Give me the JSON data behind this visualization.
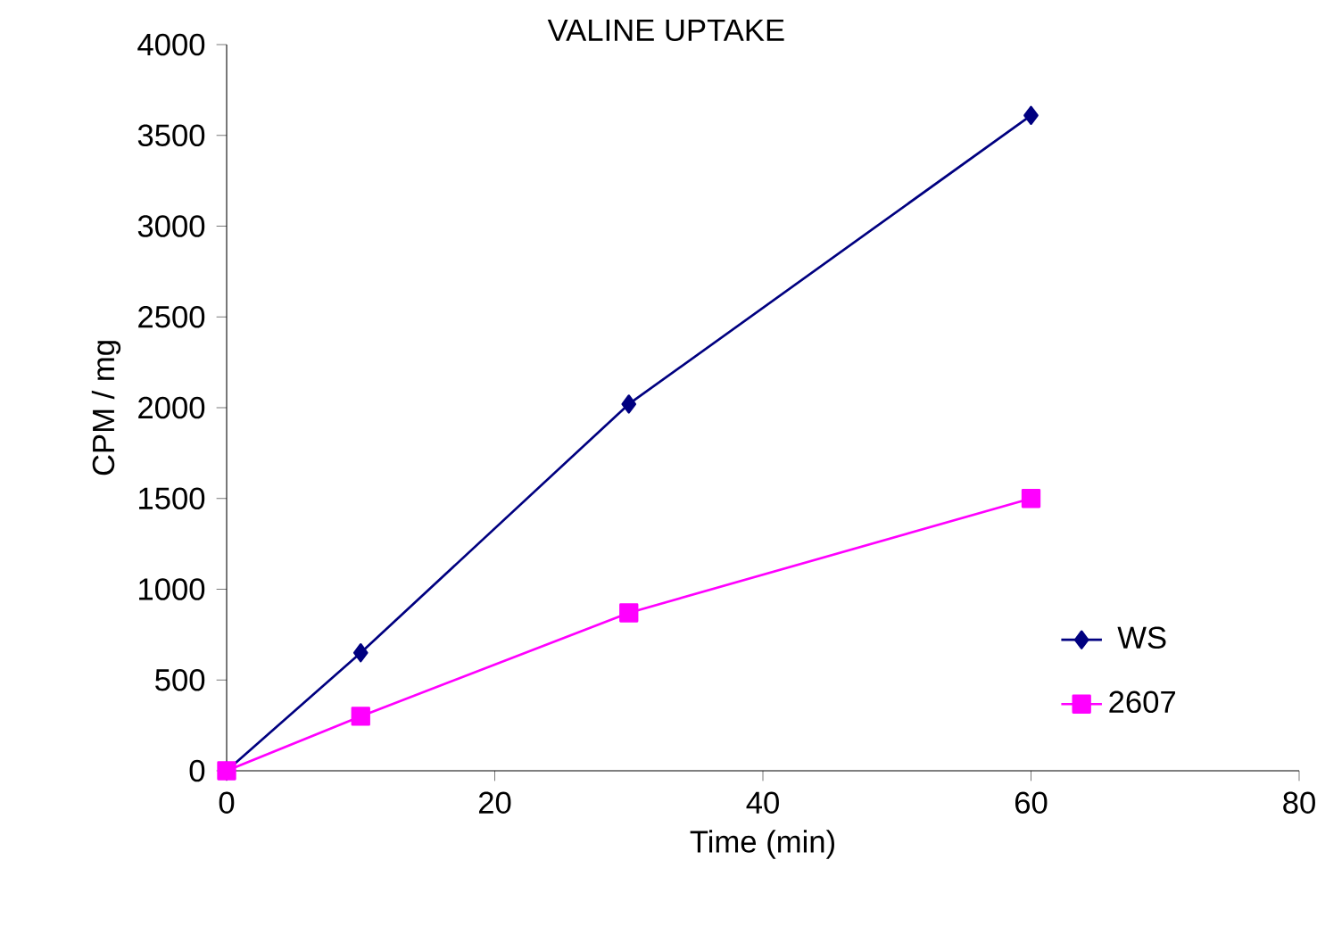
{
  "chart_data": {
    "type": "line",
    "title": "VALINE UPTAKE",
    "xlabel": "Time (min)",
    "ylabel": "CPM / mg",
    "xlim": [
      0,
      80
    ],
    "xticks": [
      0,
      20,
      40,
      60,
      80
    ],
    "ylim": [
      0,
      4000
    ],
    "yticks": [
      0,
      500,
      1000,
      1500,
      2000,
      2500,
      3000,
      3500,
      4000
    ],
    "grid": false,
    "legend": "bottom right",
    "line_style": "solid",
    "series": [
      {
        "name": "WS",
        "color": "#000080",
        "marker": "diamond",
        "x": [
          0,
          10,
          30,
          60
        ],
        "values": [
          0,
          650,
          2020,
          3610
        ]
      },
      {
        "name": "2607",
        "color": "#ff00ff",
        "marker": "square",
        "x": [
          0,
          10,
          30,
          60
        ],
        "values": [
          0,
          300,
          870,
          1500
        ]
      }
    ]
  }
}
